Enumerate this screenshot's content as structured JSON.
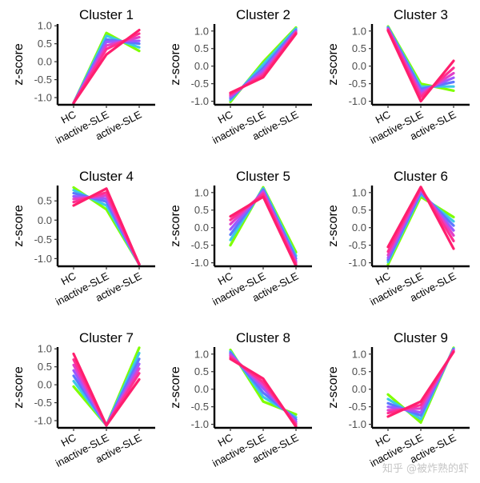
{
  "chart_data": [
    {
      "type": "line",
      "title": "Cluster 1",
      "ylabel": "z-score",
      "categories": [
        "HC",
        "inactive-SLE",
        "active-SLE"
      ],
      "ylim": [
        -1.2,
        1.05
      ],
      "yticks": [
        1.0,
        0.5,
        0.0,
        -0.5,
        -1.0
      ],
      "series": [
        {
          "values": [
            -1.15,
            0.8,
            0.3
          ]
        },
        {
          "values": [
            -1.15,
            0.72,
            0.4
          ]
        },
        {
          "values": [
            -1.15,
            0.62,
            0.5
          ]
        },
        {
          "values": [
            -1.15,
            0.55,
            0.58
          ]
        },
        {
          "values": [
            -1.15,
            0.45,
            0.68
          ]
        },
        {
          "values": [
            -1.15,
            0.35,
            0.78
          ]
        },
        {
          "values": [
            -1.15,
            0.2,
            0.88
          ]
        }
      ]
    },
    {
      "type": "line",
      "title": "Cluster 2",
      "ylabel": "z-score",
      "categories": [
        "HC",
        "inactive-SLE",
        "active-SLE"
      ],
      "ylim": [
        -1.1,
        1.2
      ],
      "yticks": [
        1.0,
        0.5,
        0.0,
        -0.5,
        -1.0
      ],
      "series": [
        {
          "values": [
            -1.02,
            0.12,
            1.1
          ]
        },
        {
          "values": [
            -0.97,
            0.05,
            1.07
          ]
        },
        {
          "values": [
            -0.92,
            -0.05,
            1.03
          ]
        },
        {
          "values": [
            -0.88,
            -0.12,
            1.0
          ]
        },
        {
          "values": [
            -0.84,
            -0.2,
            0.97
          ]
        },
        {
          "values": [
            -0.8,
            -0.26,
            0.95
          ]
        },
        {
          "values": [
            -0.76,
            -0.32,
            0.92
          ]
        }
      ]
    },
    {
      "type": "line",
      "title": "Cluster 3",
      "ylabel": "z-score",
      "categories": [
        "HC",
        "inactive-SLE",
        "active-SLE"
      ],
      "ylim": [
        -1.1,
        1.2
      ],
      "yticks": [
        1.0,
        0.5,
        0.0,
        -0.5,
        -1.0
      ],
      "series": [
        {
          "values": [
            1.13,
            -0.5,
            -0.7
          ]
        },
        {
          "values": [
            1.11,
            -0.58,
            -0.58
          ]
        },
        {
          "values": [
            1.09,
            -0.65,
            -0.45
          ]
        },
        {
          "values": [
            1.07,
            -0.72,
            -0.33
          ]
        },
        {
          "values": [
            1.05,
            -0.8,
            -0.2
          ]
        },
        {
          "values": [
            1.03,
            -0.88,
            -0.05
          ]
        },
        {
          "values": [
            1.01,
            -1.0,
            0.15
          ]
        }
      ]
    },
    {
      "type": "line",
      "title": "Cluster 4",
      "ylabel": "z-score",
      "categories": [
        "HC",
        "inactive-SLE",
        "active-SLE"
      ],
      "ylim": [
        -1.2,
        0.9
      ],
      "yticks": [
        0.5,
        0.0,
        -0.5,
        -1.0
      ],
      "series": [
        {
          "values": [
            0.85,
            0.28,
            -1.15
          ]
        },
        {
          "values": [
            0.78,
            0.38,
            -1.15
          ]
        },
        {
          "values": [
            0.7,
            0.48,
            -1.15
          ]
        },
        {
          "values": [
            0.62,
            0.56,
            -1.15
          ]
        },
        {
          "values": [
            0.55,
            0.64,
            -1.15
          ]
        },
        {
          "values": [
            0.47,
            0.72,
            -1.15
          ]
        },
        {
          "values": [
            0.38,
            0.82,
            -1.15
          ]
        }
      ]
    },
    {
      "type": "line",
      "title": "Cluster 5",
      "ylabel": "z-score",
      "categories": [
        "HC",
        "inactive-SLE",
        "active-SLE"
      ],
      "ylim": [
        -1.1,
        1.2
      ],
      "yticks": [
        1.0,
        0.5,
        0.0,
        -0.5,
        -1.0
      ],
      "series": [
        {
          "values": [
            -0.5,
            1.15,
            -0.7
          ]
        },
        {
          "values": [
            -0.35,
            1.12,
            -0.8
          ]
        },
        {
          "values": [
            -0.2,
            1.08,
            -0.88
          ]
        },
        {
          "values": [
            -0.05,
            1.04,
            -0.95
          ]
        },
        {
          "values": [
            0.1,
            1.0,
            -1.0
          ]
        },
        {
          "values": [
            0.22,
            0.95,
            -1.05
          ]
        },
        {
          "values": [
            0.32,
            0.88,
            -1.1
          ]
        }
      ]
    },
    {
      "type": "line",
      "title": "Cluster 6",
      "ylabel": "z-score",
      "categories": [
        "HC",
        "inactive-SLE",
        "active-SLE"
      ],
      "ylim": [
        -1.1,
        1.2
      ],
      "yticks": [
        1.0,
        0.5,
        0.0,
        -0.5,
        -1.0
      ],
      "series": [
        {
          "values": [
            -1.05,
            0.88,
            0.3
          ]
        },
        {
          "values": [
            -0.98,
            0.95,
            0.18
          ]
        },
        {
          "values": [
            -0.92,
            1.0,
            0.06
          ]
        },
        {
          "values": [
            -0.86,
            1.05,
            -0.08
          ]
        },
        {
          "values": [
            -0.78,
            1.1,
            -0.22
          ]
        },
        {
          "values": [
            -0.68,
            1.13,
            -0.38
          ]
        },
        {
          "values": [
            -0.55,
            1.16,
            -0.6
          ]
        }
      ]
    },
    {
      "type": "line",
      "title": "Cluster 7",
      "ylabel": "z-score",
      "categories": [
        "HC",
        "inactive-SLE",
        "active-SLE"
      ],
      "ylim": [
        -1.2,
        1.05
      ],
      "yticks": [
        1.0,
        0.5,
        0.0,
        -0.5,
        -1.0
      ],
      "series": [
        {
          "values": [
            -0.05,
            -1.13,
            1.03
          ]
        },
        {
          "values": [
            0.1,
            -1.13,
            0.88
          ]
        },
        {
          "values": [
            0.25,
            -1.13,
            0.72
          ]
        },
        {
          "values": [
            0.4,
            -1.13,
            0.58
          ]
        },
        {
          "values": [
            0.55,
            -1.13,
            0.45
          ]
        },
        {
          "values": [
            0.7,
            -1.13,
            0.32
          ]
        },
        {
          "values": [
            0.86,
            -1.13,
            0.15
          ]
        }
      ]
    },
    {
      "type": "line",
      "title": "Cluster 8",
      "ylabel": "z-score",
      "categories": [
        "HC",
        "inactive-SLE",
        "active-SLE"
      ],
      "ylim": [
        -1.1,
        1.2
      ],
      "yticks": [
        1.0,
        0.5,
        0.0,
        -0.5,
        -1.0
      ],
      "series": [
        {
          "values": [
            1.12,
            -0.35,
            -0.72
          ]
        },
        {
          "values": [
            1.08,
            -0.22,
            -0.8
          ]
        },
        {
          "values": [
            1.04,
            -0.1,
            -0.86
          ]
        },
        {
          "values": [
            1.0,
            0.02,
            -0.92
          ]
        },
        {
          "values": [
            0.96,
            0.12,
            -0.97
          ]
        },
        {
          "values": [
            0.91,
            0.2,
            -1.02
          ]
        },
        {
          "values": [
            0.86,
            0.3,
            -1.07
          ]
        }
      ]
    },
    {
      "type": "line",
      "title": "Cluster 9",
      "ylabel": "z-score",
      "categories": [
        "HC",
        "inactive-SLE",
        "active-SLE"
      ],
      "ylim": [
        -1.1,
        1.2
      ],
      "yticks": [
        1.0,
        0.5,
        0.0,
        -0.5,
        -1.0
      ],
      "series": [
        {
          "values": [
            -0.15,
            -0.95,
            1.18
          ]
        },
        {
          "values": [
            -0.28,
            -0.85,
            1.16
          ]
        },
        {
          "values": [
            -0.4,
            -0.75,
            1.14
          ]
        },
        {
          "values": [
            -0.5,
            -0.66,
            1.12
          ]
        },
        {
          "values": [
            -0.6,
            -0.55,
            1.1
          ]
        },
        {
          "values": [
            -0.68,
            -0.45,
            1.08
          ]
        },
        {
          "values": [
            -0.78,
            -0.35,
            1.06
          ]
        }
      ]
    }
  ],
  "series_colors": [
    "#7fff00",
    "#3cc8e6",
    "#5a78ff",
    "#9b59ff",
    "#e040c8",
    "#ff2f92",
    "#ff1f6e"
  ],
  "watermark": "知乎 @被炸熟的虾"
}
